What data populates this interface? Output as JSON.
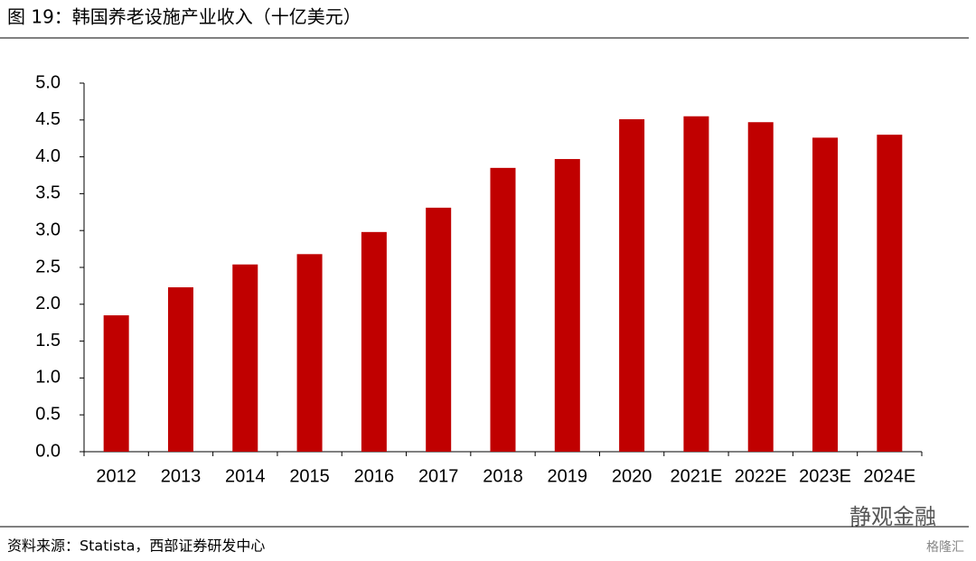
{
  "chart_data": {
    "type": "bar",
    "title": "图 19：韩国养老设施产业收入（十亿美元）",
    "source": "资料来源：Statista，西部证券研发中心",
    "watermarks": [
      "静观金融",
      "格隆汇"
    ],
    "categories": [
      "2012",
      "2013",
      "2014",
      "2015",
      "2016",
      "2017",
      "2018",
      "2019",
      "2020",
      "2021E",
      "2022E",
      "2023E",
      "2024E"
    ],
    "values": [
      1.85,
      2.23,
      2.54,
      2.68,
      2.98,
      3.31,
      3.85,
      3.97,
      4.51,
      4.55,
      4.47,
      4.26,
      4.3
    ],
    "color": "#c00000",
    "ylim": [
      0,
      5
    ],
    "yticks": [
      {
        "value": 0,
        "label": "0.0"
      },
      {
        "value": 0.5,
        "label": "0.5"
      },
      {
        "value": 1,
        "label": "1.0"
      },
      {
        "value": 1.5,
        "label": "1.5"
      },
      {
        "value": 2,
        "label": "2.0"
      },
      {
        "value": 2.5,
        "label": "2.5"
      },
      {
        "value": 3,
        "label": "3.0"
      },
      {
        "value": 3.5,
        "label": "3.5"
      },
      {
        "value": 4,
        "label": "4.0"
      },
      {
        "value": 4.5,
        "label": "4.5"
      },
      {
        "value": 5,
        "label": "5.0"
      }
    ],
    "grid": false
  }
}
